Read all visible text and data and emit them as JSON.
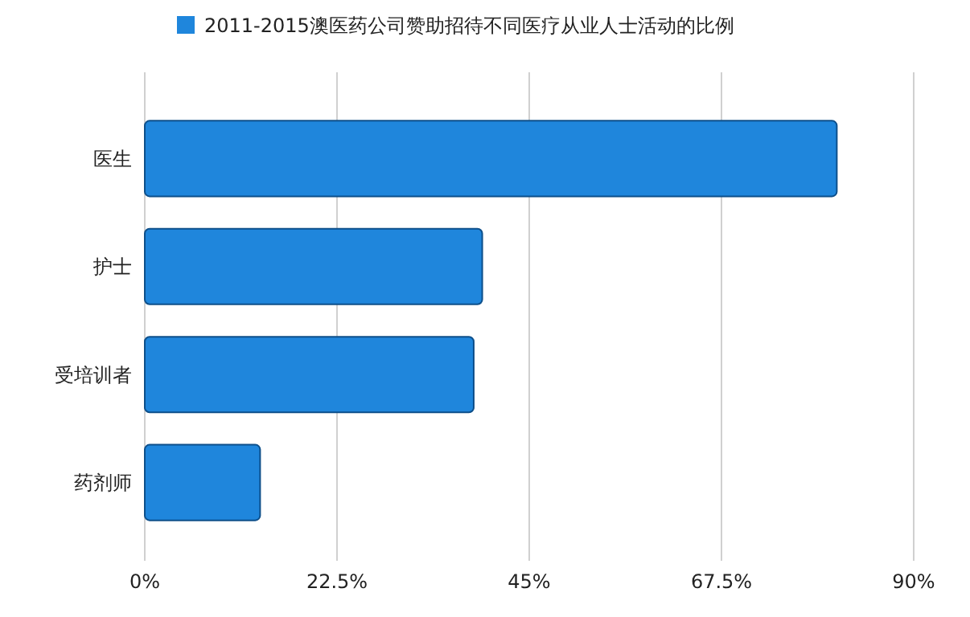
{
  "chart_data": {
    "type": "bar",
    "orientation": "horizontal",
    "categories": [
      "医生",
      "护士",
      "受培训者",
      "药剂师"
    ],
    "series": [
      {
        "name": "2011-2015澳医药公司赞助招待不同医疗从业人士活动的比例",
        "color": "#1f86dc",
        "values": [
          81,
          39.5,
          38.5,
          13.5
        ]
      }
    ],
    "xlim": [
      0,
      90
    ],
    "xticks": [
      {
        "value": 0,
        "label": "0%"
      },
      {
        "value": 22.5,
        "label": "22.5%"
      },
      {
        "value": 45,
        "label": "45%"
      },
      {
        "value": 67.5,
        "label": "67.5%"
      },
      {
        "value": 90,
        "label": "90%"
      }
    ],
    "grid": "x",
    "legend": "top"
  }
}
